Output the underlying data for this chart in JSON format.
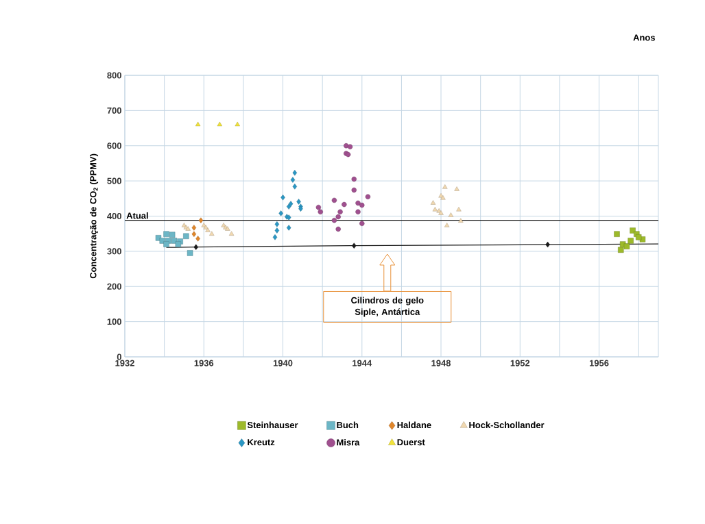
{
  "chart_data": {
    "type": "scatter",
    "xlabel": "Anos",
    "ylabel": "Concentração de CO$_{2}$ (PPMV)",
    "xlim": [
      1932,
      1959
    ],
    "ylim": [
      0,
      800
    ],
    "xticks": [
      1932,
      1936,
      1940,
      1944,
      1948,
      1952,
      1956
    ],
    "yticks": [
      0,
      100,
      200,
      300,
      400,
      500,
      600,
      700,
      800
    ],
    "grid": true,
    "legend": "bottom",
    "series": [
      {
        "name": "Steinhauser",
        "color": "#9dba2a",
        "marker": "square",
        "x": [
          1956.9,
          1957.7,
          1957.9,
          1958.2,
          1957.6,
          1957.2,
          1957.1,
          1957.4,
          1958.0
        ],
        "values": [
          349,
          359,
          349,
          334,
          330,
          320,
          304,
          314,
          340
        ]
      },
      {
        "name": "Buch",
        "color": "#6cb6c6",
        "marker": "square",
        "x": [
          1934.1,
          1934.4,
          1933.7,
          1933.9,
          1934.2,
          1934.5,
          1934.8,
          1935.1,
          1934.1,
          1934.7,
          1935.3
        ],
        "values": [
          349,
          347,
          338,
          330,
          330,
          330,
          328,
          343,
          320,
          320,
          295
        ]
      },
      {
        "name": "Haldane",
        "color": "#e0862a",
        "marker": "diamond",
        "x": [
          1935.85,
          1935.5,
          1935.5,
          1935.7
        ],
        "values": [
          388,
          367,
          349,
          336
        ]
      },
      {
        "name": "Hock-Schollander",
        "color": "#f0d8b0",
        "marker": "triangle",
        "x": [
          1935.0,
          1935.1,
          1935.2,
          1936.0,
          1936.1,
          1936.2,
          1936.4,
          1937.0,
          1937.1,
          1937.2,
          1937.4,
          1948.2,
          1948.8,
          1948.0,
          1948.1,
          1947.6,
          1947.7,
          1947.9,
          1948.0,
          1948.9,
          1948.5,
          1948.3,
          1949.0
        ],
        "values": [
          373,
          367,
          363,
          373,
          367,
          359,
          349,
          373,
          367,
          363,
          349,
          482,
          476,
          457,
          451,
          437,
          418,
          414,
          408,
          418,
          402,
          373,
          386
        ]
      },
      {
        "name": "Kreutz",
        "color": "#2a97c4",
        "marker": "diamond",
        "x": [
          1940.6,
          1940.5,
          1940.6,
          1940.0,
          1940.3,
          1940.4,
          1939.9,
          1940.2,
          1940.3,
          1940.8,
          1940.9,
          1940.9,
          1939.7,
          1939.7,
          1939.6,
          1940.3
        ],
        "values": [
          523,
          503,
          484,
          453,
          427,
          435,
          408,
          398,
          396,
          441,
          427,
          421,
          377,
          359,
          340,
          367
        ]
      },
      {
        "name": "Misra",
        "color": "#a0508f",
        "marker": "circle",
        "x": [
          1943.6,
          1943.6,
          1942.6,
          1943.1,
          1941.8,
          1941.9,
          1942.9,
          1942.8,
          1942.6,
          1942.8,
          1943.8,
          1944.0,
          1944.3,
          1943.8,
          1944.0,
          1943.2,
          1943.4,
          1943.2,
          1943.3
        ],
        "values": [
          505,
          474,
          445,
          433,
          425,
          412,
          412,
          398,
          388,
          363,
          437,
          431,
          455,
          412,
          379,
          600,
          597,
          578,
          575
        ]
      },
      {
        "name": "Duerst",
        "color": "#f2e33a",
        "marker": "triangle",
        "x": [
          1935.7,
          1936.8,
          1937.7
        ],
        "values": [
          660,
          660,
          660
        ]
      },
      {
        "type": "line",
        "color": "#1a1a1a",
        "marker": "none",
        "x": [
          1934.1,
          1935.6,
          1943.6,
          1953.4,
          1959
        ],
        "values": [
          311,
          312,
          316,
          319,
          321
        ]
      },
      {
        "color": "#1a1a1a",
        "marker": "diamond",
        "x": [
          1935.6,
          1943.6,
          1953.4
        ],
        "values": [
          312,
          316,
          319
        ]
      }
    ],
    "ref_lines": [
      {
        "axis": "y",
        "value": 388,
        "label": "Atual",
        "color": "#1a1a1a"
      }
    ],
    "annotations": [
      "Cilindros de gelo Siple, Antártica"
    ]
  }
}
